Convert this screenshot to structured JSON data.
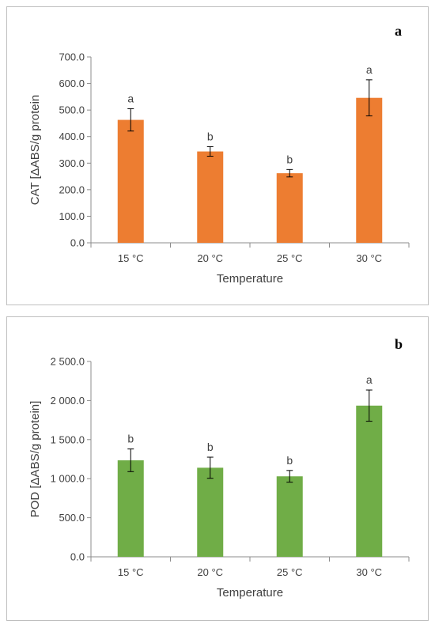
{
  "chart_data": [
    {
      "type": "bar",
      "panel_label": "a",
      "categories": [
        "15 °C",
        "20 °C",
        "25 °C",
        "30 °C"
      ],
      "values": [
        463,
        344,
        262,
        546
      ],
      "errors": [
        42,
        18,
        14,
        68
      ],
      "significance_letters": [
        "a",
        "b",
        "b",
        "a"
      ],
      "xlabel": "Temperature",
      "ylabel": "CAT [ΔABS/g protein",
      "ylim": [
        0,
        700
      ],
      "yticks": [
        0,
        100,
        200,
        300,
        400,
        500,
        600,
        700
      ],
      "ytick_labels": [
        "0.0",
        "100.0",
        "200.0",
        "300.0",
        "400.0",
        "500.0",
        "600.0",
        "700.0"
      ],
      "bar_color": "#ED7D31",
      "grid": false
    },
    {
      "type": "bar",
      "panel_label": "b",
      "categories": [
        "15 °C",
        "20 °C",
        "25 °C",
        "30 °C"
      ],
      "values": [
        1235,
        1140,
        1030,
        1935
      ],
      "errors": [
        145,
        135,
        75,
        200
      ],
      "significance_letters": [
        "b",
        "b",
        "b",
        "a"
      ],
      "xlabel": "Temperature",
      "ylabel": "POD [ΔABS/g protein]",
      "ylim": [
        0,
        2500
      ],
      "yticks": [
        0,
        500,
        1000,
        1500,
        2000,
        2500
      ],
      "ytick_labels": [
        "0.0",
        "500.0",
        "1 000.0",
        "1 500.0",
        "2 000.0",
        "2 500.0"
      ],
      "bar_color": "#70AD47",
      "grid": false
    }
  ]
}
